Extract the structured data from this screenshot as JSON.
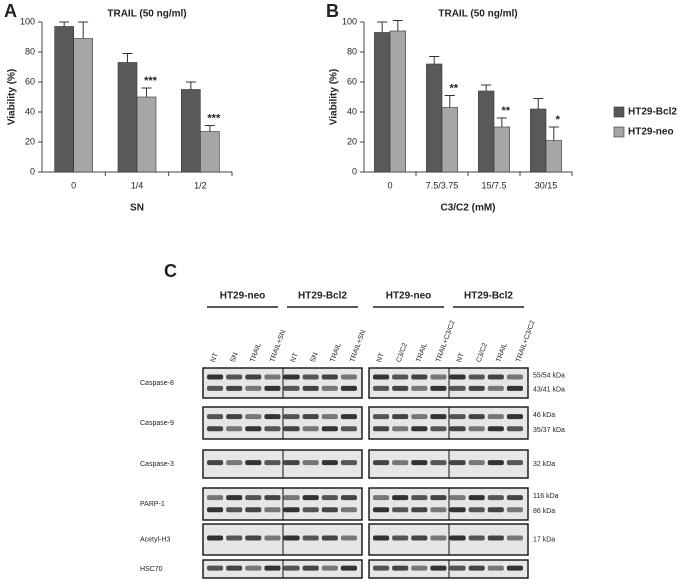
{
  "chart_data": [
    {
      "type": "bar",
      "panel": "A",
      "annotation": "TRAIL (50 ng/ml)",
      "x_label": "SN",
      "y_label": "Viability (%)",
      "categories": [
        "0",
        "1/4",
        "1/2"
      ],
      "series": [
        {
          "name": "HT29-Bcl2",
          "color": "#595959",
          "values": [
            97,
            73,
            55
          ],
          "errors": [
            3,
            6,
            5
          ]
        },
        {
          "name": "HT29-neo",
          "color": "#a6a6a6",
          "values": [
            89,
            50,
            27
          ],
          "errors": [
            11,
            6,
            4
          ],
          "significance": [
            null,
            "***",
            "***"
          ]
        }
      ],
      "ylim": [
        0,
        100
      ],
      "yticks": [
        0,
        20,
        40,
        60,
        80,
        100
      ]
    },
    {
      "type": "bar",
      "panel": "B",
      "annotation": "TRAIL (50 ng/ml)",
      "x_label": "C3/C2 (mM)",
      "y_label": "Viability (%)",
      "categories": [
        "0",
        "7.5/3.75",
        "15/7.5",
        "30/15"
      ],
      "series": [
        {
          "name": "HT29-Bcl2",
          "color": "#595959",
          "values": [
            93,
            72,
            54,
            42
          ],
          "errors": [
            7,
            5,
            4,
            7
          ]
        },
        {
          "name": "HT29-neo",
          "color": "#a6a6a6",
          "values": [
            94,
            43,
            30,
            21
          ],
          "errors": [
            7,
            8,
            6,
            9
          ],
          "significance": [
            null,
            "**",
            "**",
            "*"
          ]
        }
      ],
      "ylim": [
        0,
        100
      ],
      "yticks": [
        0,
        20,
        40,
        60,
        80,
        100
      ],
      "legend": "right"
    }
  ],
  "blot": {
    "panel": "C",
    "groups": [
      {
        "name": "HT29-neo",
        "lanes": [
          "NT",
          "SN",
          "TRAIL",
          "TRAIL+SN"
        ]
      },
      {
        "name": "HT29-Bcl2",
        "lanes": [
          "NT",
          "SN",
          "TRAIL",
          "TRAIL+SN"
        ]
      },
      {
        "name": "HT29-neo",
        "lanes": [
          "NT",
          "C3/C2",
          "TRAIL",
          "TRAIL+C3/C2"
        ]
      },
      {
        "name": "HT29-Bcl2",
        "lanes": [
          "NT",
          "C3/C2",
          "TRAIL",
          "TRAIL+C3/C2"
        ]
      }
    ],
    "rows": [
      {
        "name": "Caspase-8",
        "sizes": [
          "55/54 kDa",
          "43/41 kDa"
        ]
      },
      {
        "name": "Caspase-9",
        "sizes": [
          "46 kDa",
          "35/37 kDa"
        ]
      },
      {
        "name": "Caspase-3",
        "sizes": [
          "32 kDa"
        ]
      },
      {
        "name": "PARP-1",
        "sizes": [
          "116 kDa",
          "86 kDa"
        ]
      },
      {
        "name": "Acetyl-H3",
        "sizes": [
          "17 kDa"
        ]
      },
      {
        "name": "HSC70"
      }
    ]
  }
}
